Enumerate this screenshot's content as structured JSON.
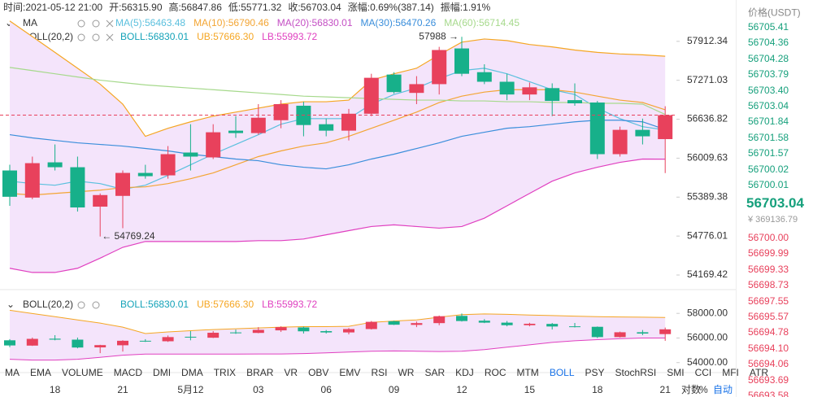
{
  "header": [
    {
      "label": "时间:",
      "value": "2021-05-12 21:00"
    },
    {
      "label": "开:",
      "value": "56315.90"
    },
    {
      "label": "高:",
      "value": "56847.86"
    },
    {
      "label": "低:",
      "value": "55771.32"
    },
    {
      "label": "收:",
      "value": "56703.04"
    },
    {
      "label": "涨幅:",
      "value": "0.69%(387.14)"
    },
    {
      "label": "振幅:",
      "value": "1.91%"
    }
  ],
  "ma_legend_title": "MA",
  "boll_legend": {
    "title": "BOLL(20,2)",
    "mid_label": "BOLL:56830.01",
    "mid_color": "#13a2b8"
  },
  "indicator_tabs": [
    "MA",
    "EMA",
    "VOLUME",
    "MACD",
    "DMI",
    "DMA",
    "TRIX",
    "BRAR",
    "VR",
    "OBV",
    "EMV",
    "RSI",
    "WR",
    "SAR",
    "KDJ",
    "ROC",
    "MTM",
    "BOLL",
    "PSY",
    "StochRSI",
    "SMI",
    "CCI",
    "MFI",
    "ATR"
  ],
  "active_tab_index": 17,
  "scale_options": [
    "对数",
    "%",
    "自动"
  ],
  "order_book": {
    "title": "价格(USDT)",
    "asks": [
      "56705.41",
      "56704.36",
      "56704.28",
      "56703.79",
      "56703.40",
      "56703.04",
      "56701.84",
      "56701.58",
      "56701.57",
      "56700.02",
      "56700.01"
    ],
    "last_price": "56703.04",
    "last_price_cny": "¥ 369136.79",
    "bids": [
      "56700.00",
      "56699.99",
      "56699.33",
      "56698.73",
      "56697.55",
      "56695.57",
      "56694.78",
      "56694.10",
      "56694.06",
      "56693.69",
      "56693.58"
    ],
    "ask_color": "#16a07c",
    "bid_color": "#e8415c"
  },
  "chart_data": {
    "type": "candlestick",
    "categories": [
      null,
      null,
      "18",
      null,
      null,
      "21",
      null,
      null,
      "5月12",
      null,
      null,
      "03",
      null,
      null,
      "06",
      null,
      null,
      "09",
      null,
      null,
      "12",
      null,
      null,
      "15",
      null,
      null,
      "18",
      null,
      null,
      "21"
    ],
    "open": [
      55813,
      55382,
      55943,
      55865,
      55239,
      55409,
      55774,
      55735,
      56100,
      56022,
      56452,
      56413,
      56621,
      56856,
      56556,
      56452,
      56726,
      57365,
      57065,
      57208,
      57795,
      57404,
      57247,
      57039,
      57143,
      56947,
      56908,
      56074,
      56465,
      56315.9
    ],
    "high": [
      55904,
      56035,
      56230,
      56035,
      55448,
      55813,
      55904,
      56204,
      56556,
      56556,
      56687,
      56882,
      56947,
      56921,
      56647,
      56804,
      57378,
      57404,
      57339,
      57821,
      57988,
      57534,
      57378,
      57234,
      57221,
      57221,
      56934,
      56517,
      56647,
      56847.86
    ],
    "low": [
      55252,
      55356,
      55813,
      55161,
      54769.24,
      54900,
      55682,
      55682,
      55813,
      55996,
      56335,
      56387,
      56491,
      56361,
      56361,
      56295,
      56687,
      57052,
      56882,
      57039,
      57339,
      57208,
      56947,
      56947,
      56687,
      56856,
      55996,
      56035,
      56230,
      55771.32
    ],
    "close": [
      55395,
      55930,
      55865,
      55226,
      55422,
      55774,
      55722,
      56074,
      56035,
      56426,
      56413,
      56661,
      56882,
      56543,
      56452,
      56726,
      57312,
      57078,
      57208,
      57769,
      57378,
      57247,
      57039,
      57156,
      56934,
      56895,
      56074,
      56465,
      56361,
      56703.04
    ],
    "up_color": "#e8415c",
    "down_color": "#17b08a",
    "ylim": [
      54019,
      58601
    ],
    "log_scale": true,
    "yticks": [
      57912.34,
      57271.03,
      56636.82,
      56009.63,
      55389.38,
      54776.01,
      54169.42
    ],
    "moving_averages": [
      {
        "label": "MA(5):56463.48",
        "color": "#5bc0de",
        "values": [
          55643,
          55604,
          55578,
          55643,
          55604,
          55513,
          55578,
          55735,
          55904,
          56074,
          56230,
          56387,
          56556,
          56647,
          56647,
          56647,
          56882,
          57039,
          57143,
          57299,
          57430,
          57469,
          57378,
          57247,
          57117,
          57039,
          56817,
          56647,
          56517,
          56463.48
        ]
      },
      {
        "label": "MA(10):56790.46",
        "color": "#f3a534",
        "values": [
          55448,
          55422,
          55448,
          55474,
          55500,
          55539,
          55552,
          55604,
          55682,
          55774,
          55904,
          56035,
          56126,
          56204,
          56256,
          56361,
          56491,
          56621,
          56752,
          56908,
          57012,
          57078,
          57117,
          57117,
          57117,
          57078,
          57012,
          56947,
          56908,
          56790.46
        ]
      },
      {
        "label": "MA(20):56830.01",
        "color": "#c44fc4"
      },
      {
        "label": "MA(30):56470.26",
        "color": "#3a8edb",
        "values": [
          56387,
          56335,
          56295,
          56256,
          56230,
          56204,
          56165,
          56126,
          56074,
          56035,
          55996,
          55969,
          55904,
          55865,
          55839,
          55904,
          55996,
          56074,
          56165,
          56256,
          56361,
          56426,
          56491,
          56517,
          56556,
          56595,
          56621,
          56621,
          56595,
          56470.26
        ]
      },
      {
        "label": "MA(60):56714.45",
        "color": "#a6d98c",
        "values": [
          57482,
          57430,
          57378,
          57325,
          57273,
          57234,
          57195,
          57169,
          57143,
          57117,
          57091,
          57065,
          57039,
          57012,
          56999,
          56986,
          56973,
          56960,
          56947,
          56947,
          56934,
          56934,
          56921,
          56921,
          56908,
          56908,
          56895,
          56895,
          56882,
          56714.45
        ]
      }
    ],
    "bollinger": {
      "upper": {
        "label": "UB:57666.30",
        "color": "#f5a623",
        "values": [
          58251,
          57991,
          57730,
          57469,
          57208,
          56882,
          56361,
          56491,
          56595,
          56687,
          56752,
          56817,
          56882,
          56921,
          56921,
          56947,
          57273,
          57378,
          57469,
          57690,
          57899,
          57951,
          57925,
          57860,
          57821,
          57769,
          57730,
          57704,
          57690,
          57666.3
        ]
      },
      "lower": {
        "label": "LB:55993.72",
        "color": "#e040c0",
        "values": [
          54274,
          54209,
          54209,
          54274,
          54431,
          54600,
          54691,
          54691,
          54691,
          54691,
          54691,
          54704,
          54704,
          54730,
          54796,
          54861,
          54926,
          54952,
          54926,
          54900,
          54926,
          55057,
          55252,
          55448,
          55643,
          55774,
          55865,
          55943,
          55996,
          55993.72
        ]
      },
      "fill": "#f4e4fb"
    },
    "annotations": [
      {
        "text": "57988 →"
      },
      {
        "text": "← 54769.24"
      }
    ],
    "sub_ylim": [
      53322,
      58475
    ],
    "sub_yticks": [
      {
        "value": 58000,
        "label": "58000.00"
      },
      {
        "value": 56000,
        "label": "56000.00"
      },
      {
        "value": 54000,
        "label": "54000.00"
      }
    ]
  }
}
